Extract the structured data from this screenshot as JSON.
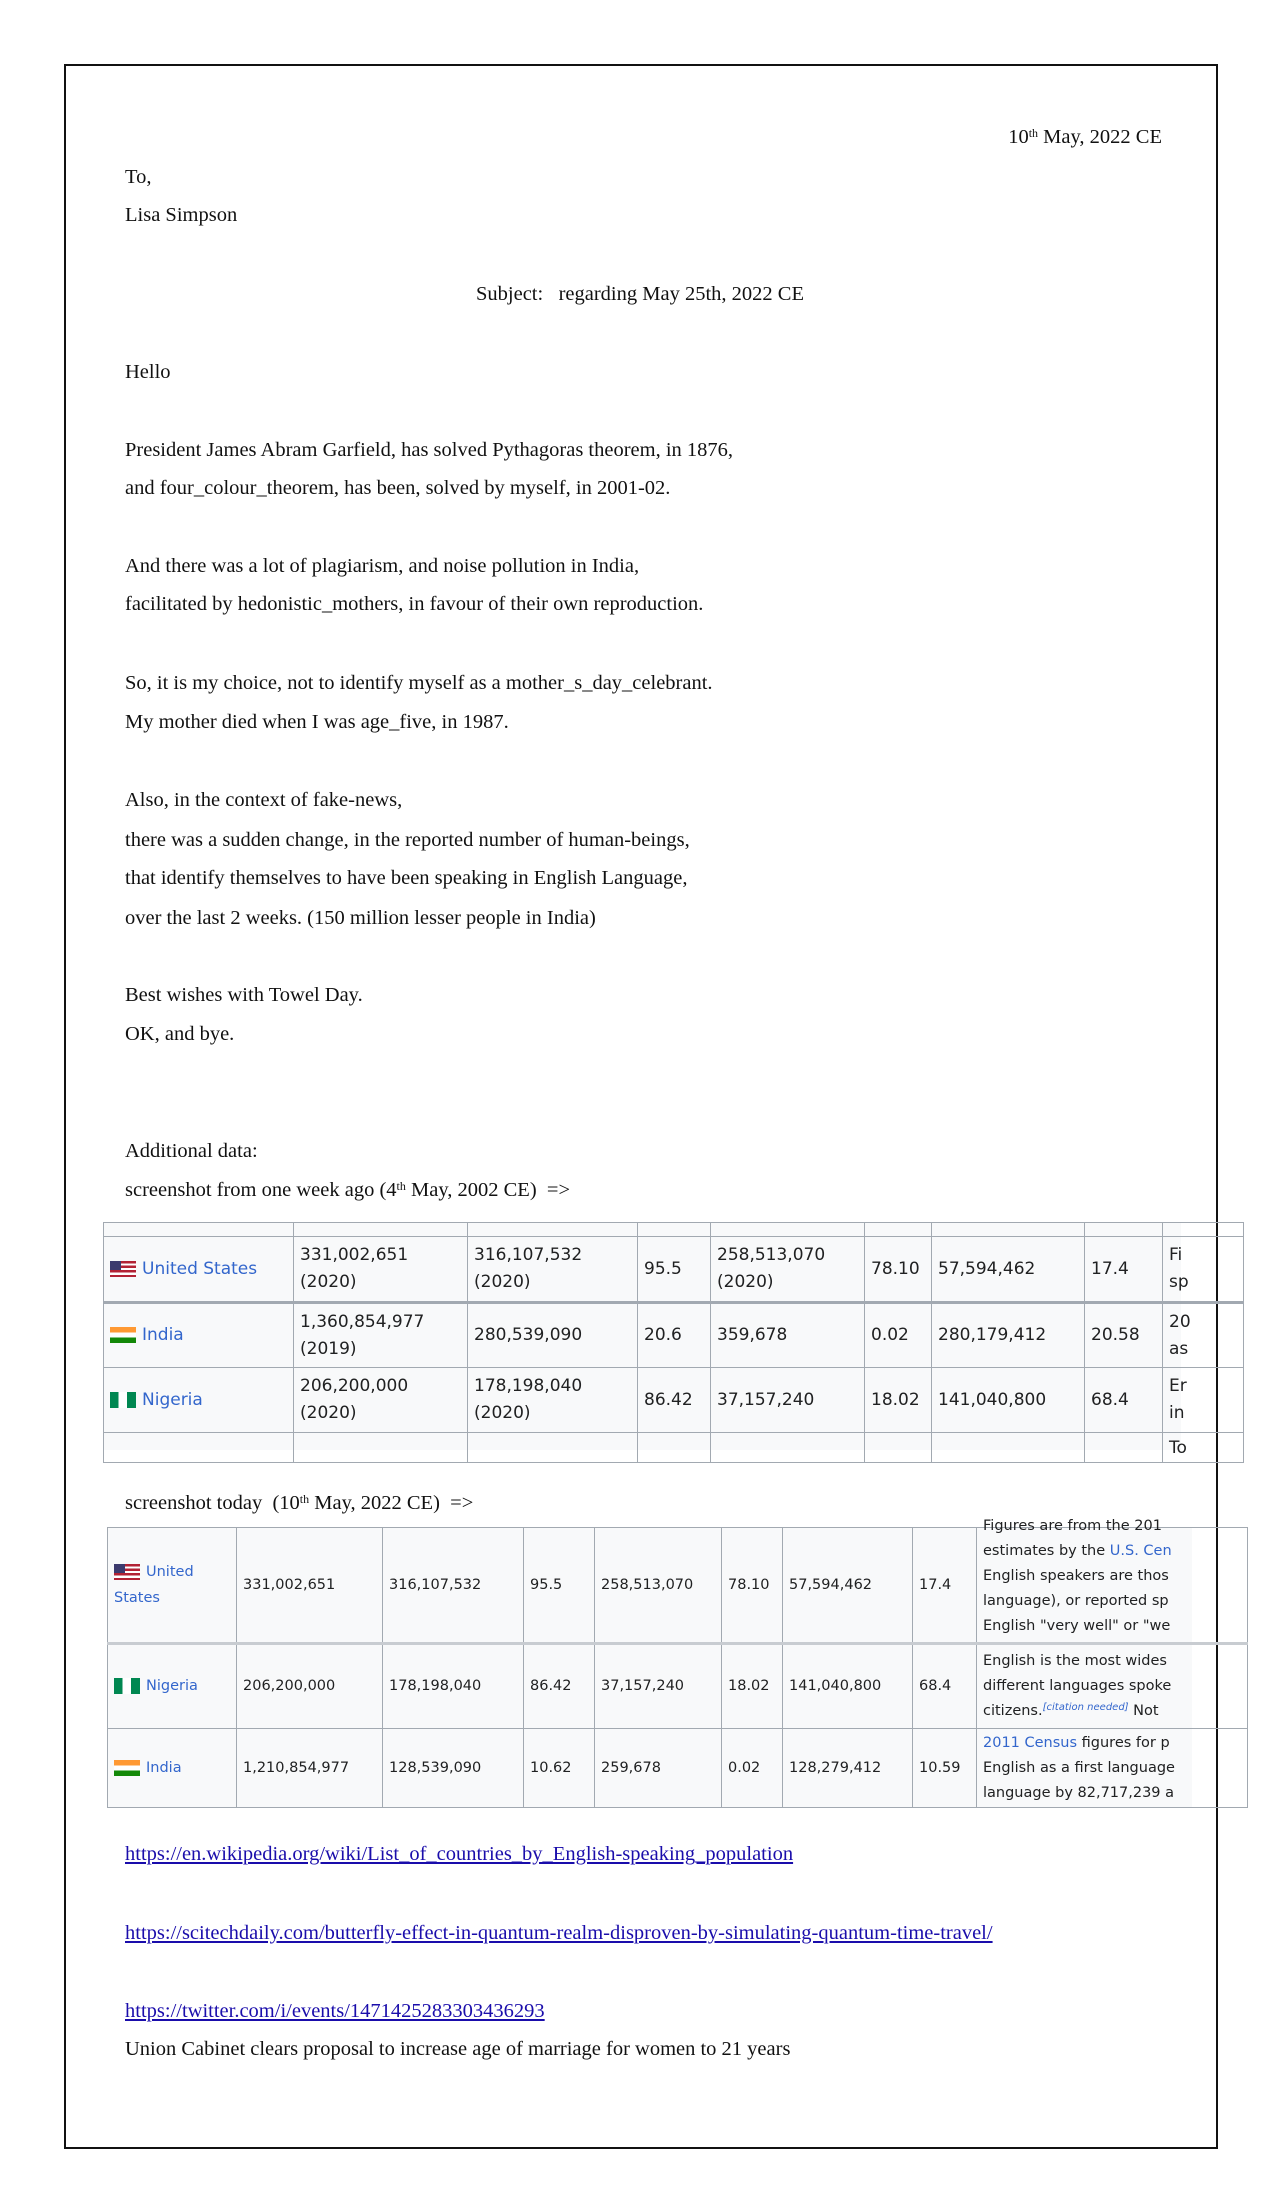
{
  "letter": {
    "date_day": "10",
    "date_sup": "th",
    "date_rest": " May, 2022 CE",
    "to": "To,",
    "recipient": "Lisa Simpson",
    "subject": "Subject:   regarding May 25th, 2022 CE",
    "greeting": "Hello",
    "lines": [
      "President James Abram Garfield, has solved Pythagoras theorem, in 1876,",
      "and four_colour_theorem, has been, solved by myself, in 2001-02.",
      "And there was a lot of plagiarism, and noise pollution in India,",
      "facilitated by hedonistic_mothers, in favour of their own reproduction.",
      "So, it is my choice, not to identify myself as a mother_s_day_celebrant.",
      "My mother died when I was age_five, in 1987.",
      "Also, in the context of fake-news,",
      "there was a sudden change, in the reported number of human-beings,",
      "that identify themselves to have been speaking in English Language,",
      "over the last 2 weeks. (150 million lesser people in India)",
      "Best wishes with Towel Day.",
      "OK, and bye."
    ],
    "additional": "Additional data:",
    "shot1_a": "screenshot from one week ago (4",
    "shot1_sup": "th",
    "shot1_b": " May, 2002 CE)  =>",
    "shot2_a": "screenshot today  (10",
    "shot2_sup": "th",
    "shot2_b": " May, 2022 CE)  =>",
    "links": [
      "https://en.wikipedia.org/wiki/List_of_countries_by_English-speaking_population",
      "https://scitechdaily.com/butterfly-effect-in-quantum-realm-disproven-by-simulating-quantum-time-travel/",
      "https://twitter.com/i/events/1471425283303436293"
    ],
    "closing": "Union Cabinet clears proposal to increase age of marriage for women to 21 years"
  },
  "table_week_ago": {
    "rows": [
      {
        "country": "United States",
        "flag": "us",
        "cells": [
          "331,002,651\n(2020)",
          "316,107,532\n(2020)",
          "95.5",
          "258,513,070\n(2020)",
          "78.10",
          "57,594,462",
          "17.4"
        ],
        "note": "Fi\nsp"
      },
      {
        "country": "India",
        "flag": "in",
        "cells": [
          "1,360,854,977\n(2019)",
          "280,539,090",
          "20.6",
          "359,678",
          "0.02",
          "280,179,412",
          "20.58"
        ],
        "note": "20\nas"
      },
      {
        "country": "Nigeria",
        "flag": "ng",
        "cells": [
          "206,200,000\n(2020)",
          "178,198,040\n(2020)",
          "86.42",
          "37,157,240",
          "18.02",
          "141,040,800",
          "68.4"
        ],
        "note": "Er\nin"
      }
    ],
    "partial_note": "To"
  },
  "table_today": {
    "rows": [
      {
        "country": "United States",
        "flag": "us",
        "cells": [
          "331,002,651",
          "316,107,532",
          "95.5",
          "258,513,070",
          "78.10",
          "57,594,462",
          "17.4"
        ],
        "note_lines": [
          "Figures are from the 201",
          "estimates by the ",
          "U.S. Cen",
          "English speakers are thos",
          "language), or reported sp",
          "English \"very well\" or \"we"
        ]
      },
      {
        "country": "Nigeria",
        "flag": "ng",
        "cells": [
          "206,200,000",
          "178,198,040",
          "86.42",
          "37,157,240",
          "18.02",
          "141,040,800",
          "68.4"
        ],
        "note_lines": [
          "English is the most wides",
          "different languages spoke",
          "citizens.",
          "[citation needed]",
          " Not"
        ]
      },
      {
        "country": "India",
        "flag": "in",
        "cells": [
          "1,210,854,977",
          "128,539,090",
          "10.62",
          "259,678",
          "0.02",
          "128,279,412",
          "10.59"
        ],
        "note_lines": [
          "2011 Census",
          " figures for p",
          "English as a first language",
          "language by 82,717,239 a"
        ]
      }
    ]
  }
}
